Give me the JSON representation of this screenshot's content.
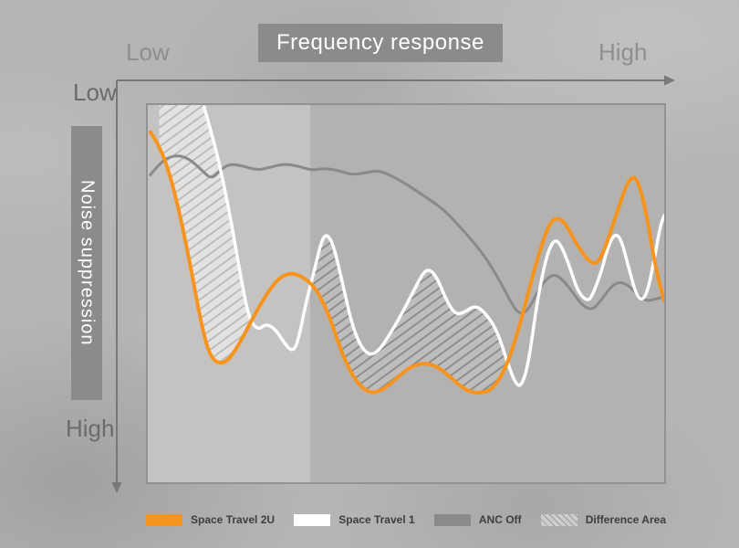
{
  "title_box": {
    "label": "Frequency response"
  },
  "axis": {
    "x_low": "Low",
    "x_high": "High",
    "y_low": "Low",
    "y_high": "High",
    "y_title": "Noise suppression"
  },
  "legend": {
    "items": [
      {
        "label": "Space Travel 2U",
        "swatch": "orange"
      },
      {
        "label": "Space Travel 1",
        "swatch": "white"
      },
      {
        "label": "ANC Off",
        "swatch": "gray"
      },
      {
        "label": "Difference Area",
        "swatch": "hatch"
      }
    ]
  },
  "colors": {
    "accent_orange": "#F7941E",
    "line_white": "#FFFFFF",
    "line_gray": "#8A8A88",
    "label_box_gray": "#8B8B89",
    "background_gray": "#B6B5B3"
  },
  "chart_data": {
    "type": "line",
    "title": "Frequency response",
    "xlabel": "Frequency response (Low to High)",
    "ylabel": "Noise suppression (Low at top, High at bottom)",
    "x_range": [
      0,
      100
    ],
    "y_range": [
      0,
      100
    ],
    "y_axis_note": "y increases downward: top = Low suppression, bottom = High suppression",
    "grid": false,
    "legend_position": "bottom",
    "series": [
      {
        "name": "Space Travel 2U",
        "color": "#F7941E",
        "points": [
          [
            0.5,
            7.2
          ],
          [
            2.6,
            11.3
          ],
          [
            5.3,
            23.3
          ],
          [
            7.9,
            40
          ],
          [
            10.5,
            59.2
          ],
          [
            12.3,
            67.6
          ],
          [
            14.9,
            68.8
          ],
          [
            17.5,
            64
          ],
          [
            21.1,
            54.4
          ],
          [
            24.6,
            46.8
          ],
          [
            27.2,
            44.4
          ],
          [
            29.8,
            45.3
          ],
          [
            32.5,
            48.4
          ],
          [
            35.1,
            55.6
          ],
          [
            37.7,
            66.4
          ],
          [
            40.4,
            73.6
          ],
          [
            43,
            76.5
          ],
          [
            45.6,
            75.5
          ],
          [
            48.2,
            72.4
          ],
          [
            50.9,
            69.3
          ],
          [
            53.5,
            68.3
          ],
          [
            56.1,
            69.3
          ],
          [
            58.8,
            72.4
          ],
          [
            61.4,
            75.5
          ],
          [
            64,
            76.5
          ],
          [
            66.7,
            75.5
          ],
          [
            69.3,
            70
          ],
          [
            71.9,
            59.2
          ],
          [
            74.6,
            44.8
          ],
          [
            77.2,
            32.9
          ],
          [
            78.9,
            29.7
          ],
          [
            80.7,
            30.9
          ],
          [
            83.3,
            37.6
          ],
          [
            86,
            42.4
          ],
          [
            87.7,
            41.2
          ],
          [
            90.4,
            30.5
          ],
          [
            93,
            19.7
          ],
          [
            94.7,
            18.9
          ],
          [
            96.5,
            28.1
          ],
          [
            98.2,
            42.4
          ],
          [
            100,
            52
          ]
        ]
      },
      {
        "name": "Space Travel 1",
        "color": "#FFFFFF",
        "points": [
          [
            10.9,
            0.5
          ],
          [
            13.2,
            11.3
          ],
          [
            15.8,
            28.1
          ],
          [
            17.9,
            44.8
          ],
          [
            19.6,
            56.8
          ],
          [
            21.4,
            59.7
          ],
          [
            22.8,
            58
          ],
          [
            24.6,
            59.2
          ],
          [
            26.3,
            62.8
          ],
          [
            27.7,
            65.2
          ],
          [
            28.9,
            64
          ],
          [
            30.7,
            52
          ],
          [
            32.5,
            42.4
          ],
          [
            33.7,
            35.7
          ],
          [
            34.7,
            34.1
          ],
          [
            36,
            37.2
          ],
          [
            37.7,
            47.2
          ],
          [
            39.5,
            58
          ],
          [
            41.2,
            64
          ],
          [
            43,
            66.4
          ],
          [
            44.7,
            65.2
          ],
          [
            46.5,
            61.6
          ],
          [
            49.1,
            55.6
          ],
          [
            51.8,
            48.4
          ],
          [
            53.5,
            44.1
          ],
          [
            54.7,
            43.6
          ],
          [
            56.1,
            46
          ],
          [
            57.9,
            52
          ],
          [
            59.6,
            55.6
          ],
          [
            61.4,
            54.9
          ],
          [
            63.2,
            53.2
          ],
          [
            64.9,
            54.4
          ],
          [
            67.5,
            59.2
          ],
          [
            69.8,
            68.8
          ],
          [
            71.1,
            73.6
          ],
          [
            72.3,
            74.8
          ],
          [
            73.7,
            68.8
          ],
          [
            75.4,
            52
          ],
          [
            77.2,
            40
          ],
          [
            78.6,
            35.7
          ],
          [
            79.8,
            36.5
          ],
          [
            81.6,
            42.4
          ],
          [
            83.3,
            49.6
          ],
          [
            85.1,
            52
          ],
          [
            86,
            50.8
          ],
          [
            87.7,
            44.8
          ],
          [
            89.1,
            37.6
          ],
          [
            90.4,
            34.1
          ],
          [
            91.6,
            35.3
          ],
          [
            93,
            42.4
          ],
          [
            94.4,
            49.6
          ],
          [
            95.6,
            52
          ],
          [
            96.8,
            49.6
          ],
          [
            98.2,
            40
          ],
          [
            99.3,
            31.7
          ],
          [
            100,
            29.3
          ]
        ]
      },
      {
        "name": "ANC Off",
        "color": "#8A8A88",
        "points": [
          [
            0.5,
            18.5
          ],
          [
            2.6,
            14.9
          ],
          [
            5.3,
            13.2
          ],
          [
            7.9,
            14.1
          ],
          [
            10.5,
            17.3
          ],
          [
            12.3,
            19.7
          ],
          [
            14,
            17.3
          ],
          [
            15.8,
            15.6
          ],
          [
            18.4,
            16.1
          ],
          [
            21.1,
            17.3
          ],
          [
            23.7,
            16.5
          ],
          [
            26.3,
            15.6
          ],
          [
            28.9,
            16.1
          ],
          [
            31.6,
            17.3
          ],
          [
            34.2,
            16.8
          ],
          [
            36.8,
            17.3
          ],
          [
            39.5,
            18.5
          ],
          [
            42.1,
            18
          ],
          [
            44.7,
            17.3
          ],
          [
            47.4,
            18.9
          ],
          [
            50,
            20.9
          ],
          [
            52.6,
            23.3
          ],
          [
            55.3,
            25.7
          ],
          [
            57.9,
            28.5
          ],
          [
            60.5,
            32.4
          ],
          [
            63.2,
            36.5
          ],
          [
            65.8,
            41.2
          ],
          [
            68.4,
            47.2
          ],
          [
            70.2,
            52
          ],
          [
            71.9,
            55.6
          ],
          [
            73.7,
            54.4
          ],
          [
            75.4,
            49.6
          ],
          [
            77.2,
            46
          ],
          [
            78.9,
            44.8
          ],
          [
            80.7,
            46.8
          ],
          [
            82.5,
            50.1
          ],
          [
            84.2,
            53.2
          ],
          [
            86,
            54.4
          ],
          [
            87.7,
            52
          ],
          [
            89.5,
            48.4
          ],
          [
            91.2,
            46.8
          ],
          [
            93,
            47.7
          ],
          [
            94.7,
            50.1
          ],
          [
            96.5,
            52
          ],
          [
            98.2,
            51.5
          ],
          [
            100,
            50.8
          ]
        ]
      }
    ],
    "difference_areas": [
      {
        "label": "Difference Area",
        "upper": "Space Travel 1",
        "lower": "Space Travel 2U",
        "x_range": [
          2.2,
          20.5
        ],
        "style": "light"
      },
      {
        "label": "Difference Area",
        "upper": "Space Travel 1",
        "lower": "Space Travel 2U",
        "x_range": [
          31.5,
          69.6
        ],
        "style": "dark"
      }
    ]
  }
}
